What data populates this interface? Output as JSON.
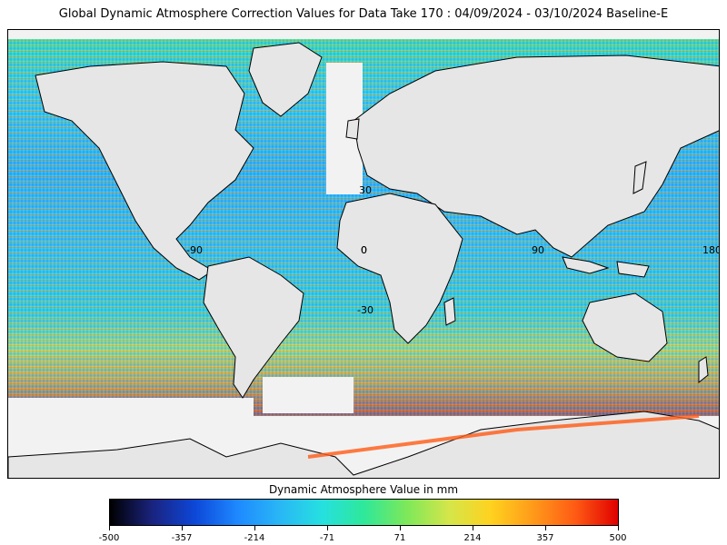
{
  "title": "Global Dynamic Atmosphere Correction Values for Data Take 170 : 04/09/2024 - 03/10/2024 Baseline-E",
  "map": {
    "lat_labels": [
      "30",
      "0",
      "-30"
    ],
    "lon_labels": [
      "-90",
      "0",
      "90",
      "180"
    ],
    "land_color": "#e6e6e6",
    "ocean_missing_color": "#f2f2f2",
    "coastline_color": "#000000"
  },
  "colorbar": {
    "title": "Dynamic Atmosphere Value in mm",
    "ticks": [
      "-500",
      "-357",
      "-214",
      "-71",
      "71",
      "214",
      "357",
      "500"
    ],
    "range": [
      -500,
      500
    ],
    "colors": [
      "#000000",
      "#1a237e",
      "#0d47d8",
      "#1e88ff",
      "#29b6f6",
      "#26e0e0",
      "#2ee89a",
      "#7ce85a",
      "#d4e64a",
      "#ffd21f",
      "#ff9a1a",
      "#ff5a14",
      "#e00000"
    ]
  }
}
